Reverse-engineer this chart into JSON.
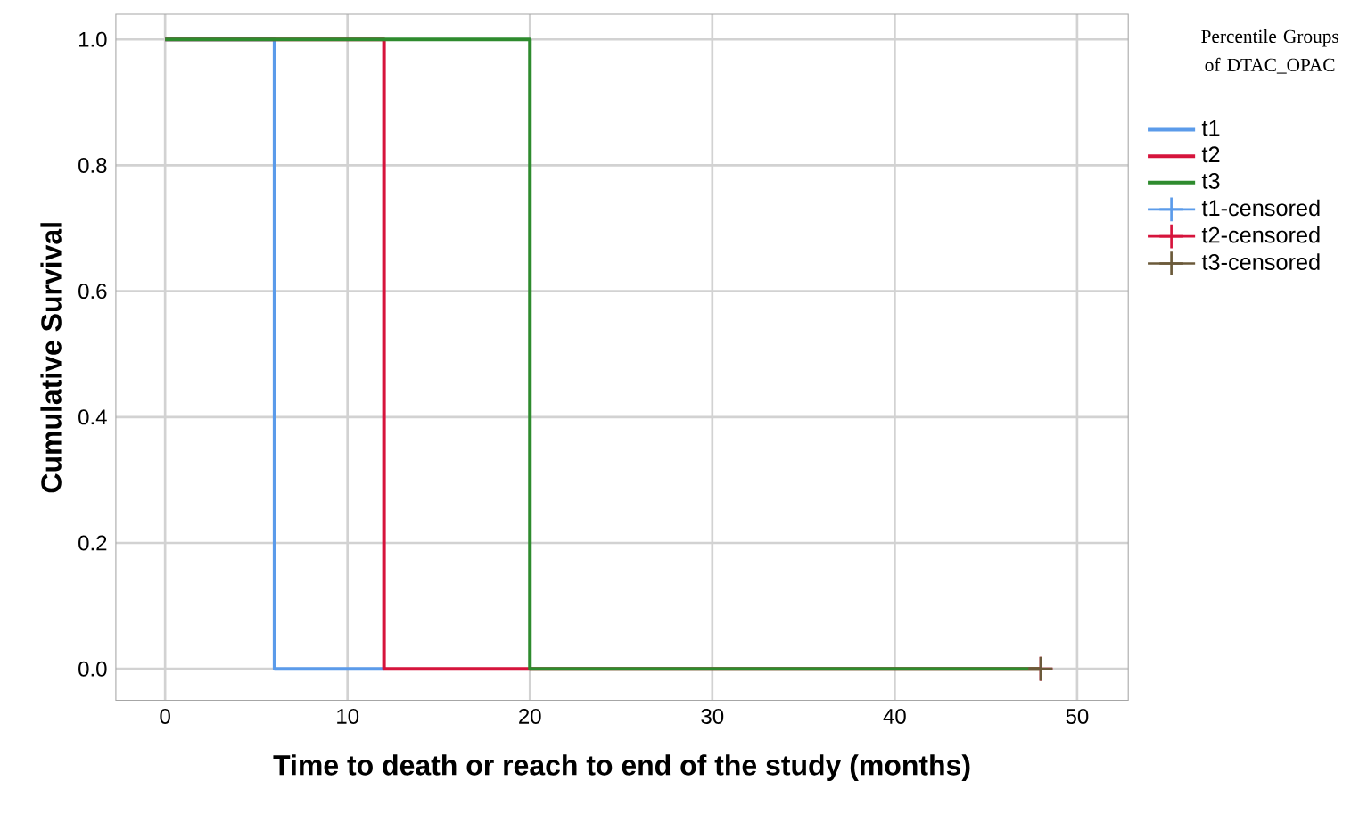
{
  "chart_data": {
    "type": "line",
    "xlabel": "Time to death or reach to end of the study (months)",
    "ylabel": "Cumulative Survival",
    "legend_title": "Percentile Groups of DTAC_OPAC",
    "xlim": [
      -2.7,
      52.8
    ],
    "ylim": [
      -0.05,
      1.04
    ],
    "xticks": [
      0,
      10,
      20,
      30,
      40,
      50
    ],
    "yticks": [
      {
        "value": 0,
        "label": "0.0"
      },
      {
        "value": 0.2,
        "label": "0.2"
      },
      {
        "value": 0.4,
        "label": "0.4"
      },
      {
        "value": 0.6,
        "label": "0.6"
      },
      {
        "value": 0.8,
        "label": "0.8"
      },
      {
        "value": 1.0,
        "label": "1.0"
      }
    ],
    "grid": true,
    "legend": "right",
    "series": [
      {
        "name": "t1",
        "color": "#5b9bea",
        "x": [
          0,
          6,
          6,
          12
        ],
        "values": [
          1,
          1,
          0,
          0
        ]
      },
      {
        "name": "t2",
        "color": "#d6143c",
        "x": [
          0,
          12,
          12,
          48
        ],
        "values": [
          1,
          1,
          0,
          0
        ]
      },
      {
        "name": "t3",
        "color": "#2e8b2e",
        "x": [
          0,
          20,
          20,
          48
        ],
        "values": [
          1,
          1,
          0,
          0
        ]
      },
      {
        "name": "t1-censored",
        "type": "scatter",
        "marker": "cross",
        "color": "#5b9bea"
      },
      {
        "name": "t2-censored",
        "type": "scatter",
        "marker": "cross",
        "color": "#d6143c",
        "x": [
          48
        ],
        "values": [
          0
        ]
      },
      {
        "name": "t3-censored",
        "type": "scatter",
        "marker": "cross",
        "color": "#6b5a3a",
        "x": [
          48
        ],
        "values": [
          0
        ]
      }
    ]
  }
}
